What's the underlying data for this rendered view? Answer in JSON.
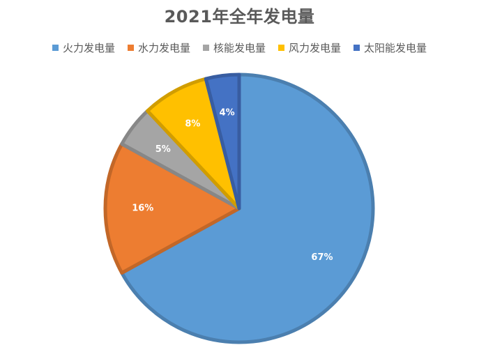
{
  "chart_data": {
    "type": "pie",
    "title": "2021年全年发电量",
    "legend_position": "top",
    "start_angle_deg": 0,
    "direction": "clockwise",
    "slices": [
      {
        "label": "火力发电量",
        "value": 67,
        "display": "67%",
        "color": "#5B9BD5",
        "label_color": "#ffffff"
      },
      {
        "label": "水力发电量",
        "value": 16,
        "display": "16%",
        "color": "#ED7D31",
        "label_color": "#ffffff"
      },
      {
        "label": "核能发电量",
        "value": 5,
        "display": "5%",
        "color": "#A5A5A5",
        "label_color": "#ffffff"
      },
      {
        "label": "风力发电量",
        "value": 8,
        "display": "8%",
        "color": "#FFC000",
        "label_color": "#ffffff"
      },
      {
        "label": "太阳能发电量",
        "value": 4,
        "display": "4%",
        "color": "#4472C4",
        "label_color": "#ffffff"
      }
    ]
  }
}
